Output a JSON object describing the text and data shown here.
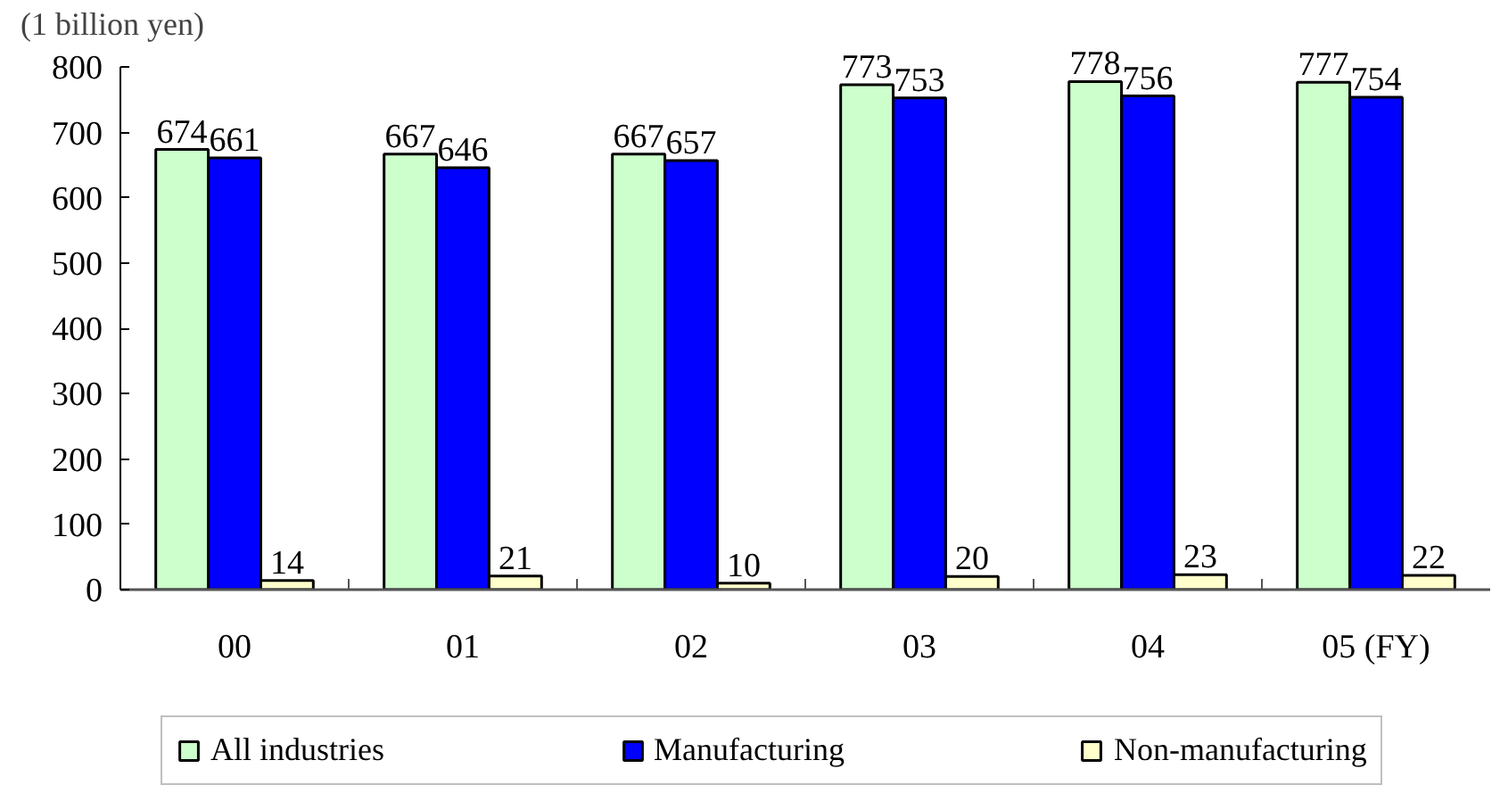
{
  "chart_data": {
    "type": "bar",
    "ylabel": "(1 billion yen)",
    "categories": [
      "00",
      "01",
      "02",
      "03",
      "04",
      "05 (FY)"
    ],
    "series": [
      {
        "name": "All industries",
        "color": "#ccffcc",
        "values": [
          674,
          667,
          667,
          773,
          778,
          777
        ]
      },
      {
        "name": "Manufacturing",
        "color": "#0000ff",
        "values": [
          661,
          646,
          657,
          753,
          756,
          754
        ]
      },
      {
        "name": "Non-manufacturing",
        "color": "#ffffcc",
        "values": [
          14,
          21,
          10,
          20,
          23,
          22
        ]
      }
    ],
    "ylim": [
      0,
      800
    ],
    "yticks": [
      0,
      100,
      200,
      300,
      400,
      500,
      600,
      700,
      800
    ],
    "data_labels": true,
    "legend": "bottom"
  }
}
